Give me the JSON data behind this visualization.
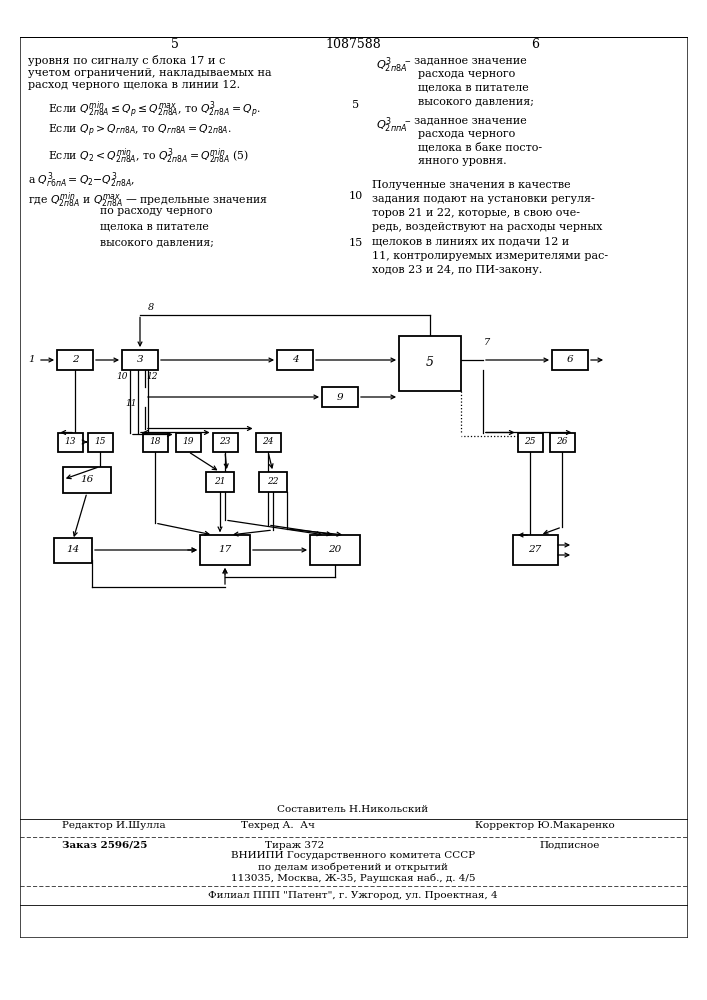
{
  "bg_color": "#ffffff",
  "patent_number": "1087588",
  "page_left": "5",
  "page_right": "6",
  "footer_composer": "Составитель Н.Никольский",
  "footer_editor": "Редактор И.Шулла",
  "footer_techred": "Техред А.  Ач",
  "footer_corrector": "Корректор Ю.Макаренко",
  "footer_order": "Заказ 2596/25",
  "footer_tirazh": "Тираж 372",
  "footer_podpisnoe": "Подписное",
  "footer_vniiipi": "ВНИИПИ Государственного комитета СССР",
  "footer_po": "по делам изобретений и открытий",
  "footer_address": "113035, Москва, Ж-35, Раушская наб., д. 4/5",
  "footer_filial": "Филиал ППП \"Патент\", г. Ужгород, ул. Проектная, 4"
}
